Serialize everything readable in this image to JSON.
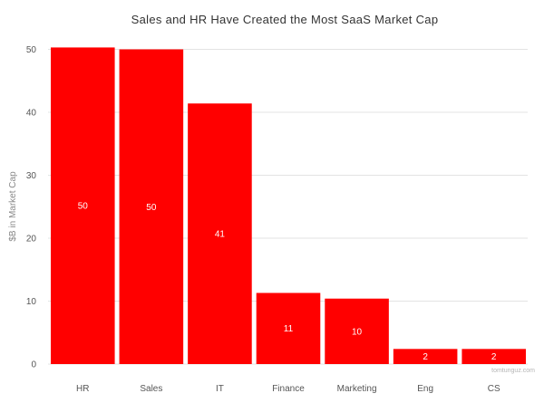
{
  "chart_data": {
    "type": "bar",
    "title": "Sales and HR Have Created the Most SaaS Market Cap",
    "ylabel": "$B in Market Cap",
    "xlabel": "",
    "categories": [
      "HR",
      "Sales",
      "IT",
      "Finance",
      "Marketing",
      "Eng",
      "CS"
    ],
    "values": [
      50.3,
      50,
      41.4,
      11.3,
      10.4,
      2.4,
      2.4
    ],
    "data_labels": [
      "50",
      "50",
      "41",
      "11",
      "10",
      "2",
      "2"
    ],
    "yticks": [
      "0",
      "10",
      "20",
      "30",
      "40",
      "50"
    ],
    "ylim": [
      0,
      52
    ],
    "grid": true,
    "bar_color": "#ff0000",
    "credit": "tomtunguz.com"
  }
}
